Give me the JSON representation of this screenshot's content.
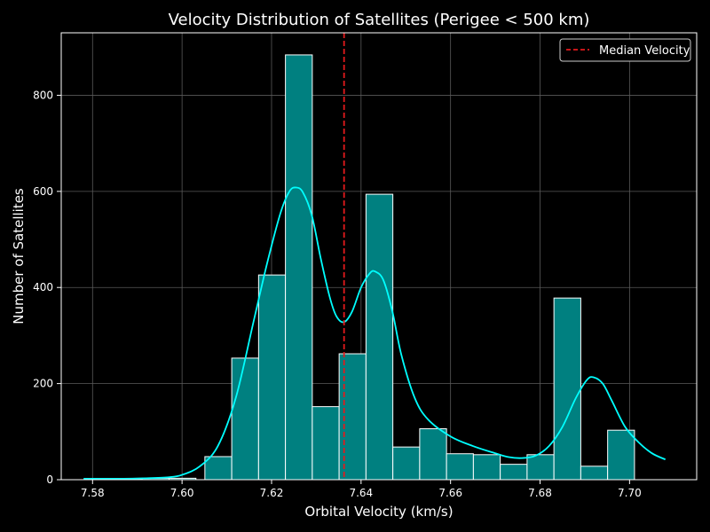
{
  "chart_data": {
    "type": "bar",
    "title": "Velocity Distribution of Satellites (Perigee < 500 km)",
    "xlabel": "Orbital Velocity (km/s)",
    "ylabel": "Number of Satellites",
    "xlim": [
      7.573,
      7.715
    ],
    "ylim": [
      0,
      930
    ],
    "xticks": [
      7.58,
      7.6,
      7.62,
      7.64,
      7.66,
      7.68,
      7.7
    ],
    "xtick_labels": [
      "7.58",
      "7.60",
      "7.62",
      "7.64",
      "7.66",
      "7.68",
      "7.70"
    ],
    "yticks": [
      0,
      200,
      400,
      600,
      800
    ],
    "ytick_labels": [
      "0",
      "200",
      "400",
      "600",
      "800"
    ],
    "grid": true,
    "legend_position": "top-right",
    "bins": [
      {
        "x0": 7.5791,
        "x1": 7.5851,
        "count": 2
      },
      {
        "x0": 7.5851,
        "x1": 7.5911,
        "count": 2
      },
      {
        "x0": 7.5911,
        "x1": 7.5971,
        "count": 3
      },
      {
        "x0": 7.5971,
        "x1": 7.6031,
        "count": 3
      },
      {
        "x0": 7.6051,
        "x1": 7.6111,
        "count": 48
      },
      {
        "x0": 7.6111,
        "x1": 7.6171,
        "count": 253
      },
      {
        "x0": 7.6171,
        "x1": 7.6231,
        "count": 426
      },
      {
        "x0": 7.6231,
        "x1": 7.6291,
        "count": 884
      },
      {
        "x0": 7.6291,
        "x1": 7.6351,
        "count": 152
      },
      {
        "x0": 7.6351,
        "x1": 7.6411,
        "count": 262
      },
      {
        "x0": 7.6411,
        "x1": 7.6471,
        "count": 594
      },
      {
        "x0": 7.6471,
        "x1": 7.6531,
        "count": 68
      },
      {
        "x0": 7.6531,
        "x1": 7.6591,
        "count": 106
      },
      {
        "x0": 7.6591,
        "x1": 7.6651,
        "count": 54
      },
      {
        "x0": 7.6651,
        "x1": 7.6711,
        "count": 52
      },
      {
        "x0": 7.6711,
        "x1": 7.6771,
        "count": 32
      },
      {
        "x0": 7.6771,
        "x1": 7.6831,
        "count": 52
      },
      {
        "x0": 7.6831,
        "x1": 7.6891,
        "count": 378
      },
      {
        "x0": 7.6891,
        "x1": 7.6951,
        "count": 28
      },
      {
        "x0": 7.6951,
        "x1": 7.7011,
        "count": 103
      }
    ],
    "kde": {
      "x": [
        7.578,
        7.585,
        7.592,
        7.597,
        7.6,
        7.604,
        7.608,
        7.612,
        7.616,
        7.619,
        7.622,
        7.624,
        7.6255,
        7.627,
        7.629,
        7.631,
        7.633,
        7.6345,
        7.6362,
        7.638,
        7.64,
        7.642,
        7.6432,
        7.645,
        7.647,
        7.649,
        7.652,
        7.655,
        7.66,
        7.665,
        7.67,
        7.673,
        7.676,
        7.679,
        7.682,
        7.685,
        7.688,
        7.6905,
        7.692,
        7.694,
        7.696,
        7.699,
        7.702,
        7.705,
        7.708
      ],
      "y": [
        2,
        2,
        3,
        5,
        10,
        28,
        70,
        170,
        330,
        450,
        555,
        600,
        608,
        598,
        550,
        460,
        380,
        340,
        328,
        350,
        400,
        430,
        433,
        415,
        350,
        260,
        170,
        125,
        90,
        70,
        55,
        47,
        45,
        50,
        70,
        110,
        170,
        208,
        213,
        200,
        165,
        110,
        78,
        55,
        42
      ]
    },
    "median": 7.6362,
    "series": [
      {
        "name": "Median Velocity",
        "color": "#e31a1c",
        "style": "dashed"
      }
    ],
    "colors": {
      "bar_fill": "#008080",
      "bar_edge": "#ffffff",
      "kde_line": "#00ffff",
      "median_line": "#e31a1c",
      "background": "#000000",
      "grid": "#5a5a5a"
    }
  }
}
